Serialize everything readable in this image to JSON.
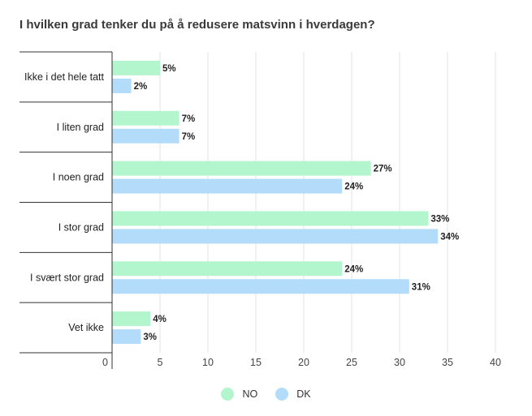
{
  "chart_data": {
    "type": "bar",
    "orientation": "horizontal",
    "title": "I hvilken grad tenker du på å redusere matsvinn i hverdagen?",
    "categories": [
      "Ikke i det hele tatt",
      "I liten grad",
      "I noen grad",
      "I stor grad",
      "I svært stor grad",
      "Vet ikke"
    ],
    "series": [
      {
        "name": "NO",
        "values": [
          5,
          7,
          27,
          33,
          24,
          4
        ],
        "labels": [
          "5%",
          "7%",
          "27%",
          "33%",
          "24%",
          "4%"
        ],
        "color": "#b3f5cd"
      },
      {
        "name": "DK",
        "values": [
          2,
          7,
          24,
          34,
          31,
          3
        ],
        "labels": [
          "2%",
          "7%",
          "24%",
          "34%",
          "31%",
          "3%"
        ],
        "color": "#b3dcfa"
      }
    ],
    "x_ticks": [
      "0",
      "5",
      "10",
      "15",
      "20",
      "25",
      "30",
      "35",
      "40"
    ],
    "xlim": [
      0,
      40
    ],
    "grid": true,
    "legend_position": "bottom"
  }
}
